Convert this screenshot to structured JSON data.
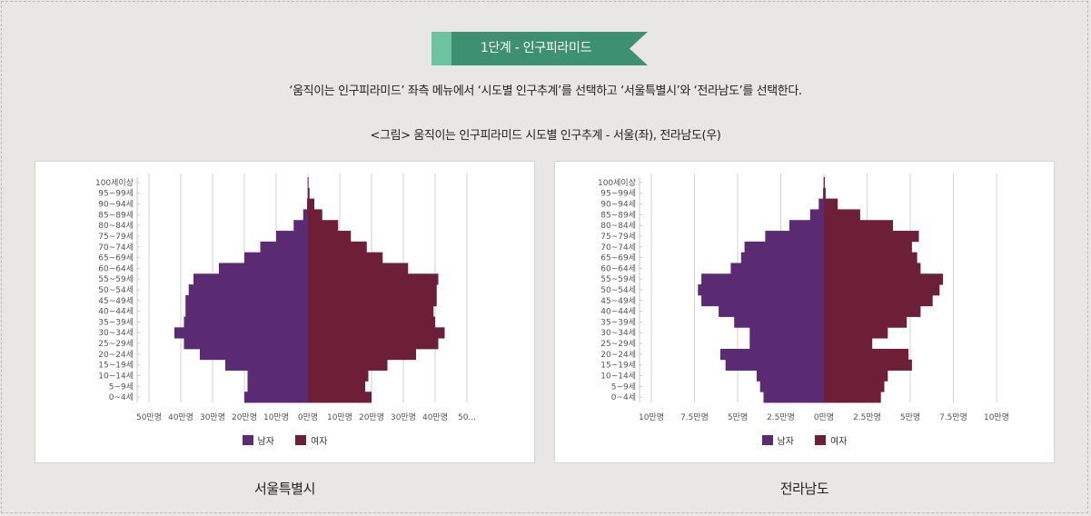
{
  "header": {
    "step_title": "1단계 - 인구피라미드",
    "instruction": "‘움직이는 인구피라미드’ 좌측 메뉴에서 ‘시도별 인구추계’를 선택하고 ‘서울특별시’와 ‘전라남도’를 선택한다.",
    "figure_caption": "<그림> 움직이는 인구피라미드 시도별 인구추계 - 서울(좌), 전라남도(우)"
  },
  "colors": {
    "male": "#5a2a73",
    "female": "#6e1f38",
    "banner_dark": "#3e9170",
    "banner_light": "#6cc3a0",
    "background": "#e8e7e6",
    "grid": "#d2d2da"
  },
  "chart_data": [
    {
      "type": "bar",
      "orientation": "horizontal-population-pyramid",
      "region_label": "서울특별시",
      "categories": [
        "0~4세",
        "5~9세",
        "10~14세",
        "15~19세",
        "20~24세",
        "25~29세",
        "30~34세",
        "35~39세",
        "40~44세",
        "45~49세",
        "50~54세",
        "55~59세",
        "60~64세",
        "65~69세",
        "70~74세",
        "75~79세",
        "80~84세",
        "85~89세",
        "90~94세",
        "95~99세",
        "100세이상"
      ],
      "x_tick_labels": [
        "50만명",
        "40만명",
        "30만명",
        "20만명",
        "10만명",
        "0만명",
        "10만명",
        "20만명",
        "30만명",
        "40만명",
        "50..."
      ],
      "xlim": [
        -50,
        50
      ],
      "unit": "만명",
      "grid": true,
      "legend_position": "bottom",
      "series": [
        {
          "name": "남자",
          "values": [
            20,
            19,
            19,
            26,
            34,
            39,
            42,
            39,
            38.5,
            38.5,
            37.5,
            36,
            28,
            20,
            15,
            10,
            4.5,
            1.5,
            0.3,
            0.1,
            0.1
          ]
        },
        {
          "name": "여자",
          "values": [
            20,
            18,
            19,
            25,
            34,
            41,
            43,
            40,
            39.5,
            40.5,
            40.5,
            41,
            31.5,
            23.5,
            18.5,
            13.5,
            9.5,
            4.5,
            2,
            0.5,
            0.2
          ]
        }
      ]
    },
    {
      "type": "bar",
      "orientation": "horizontal-population-pyramid",
      "region_label": "전라남도",
      "categories": [
        "0~4세",
        "5~9세",
        "10~14세",
        "15~19세",
        "20~24세",
        "25~29세",
        "30~34세",
        "35~39세",
        "40~44세",
        "45~49세",
        "50~54세",
        "55~59세",
        "60~64세",
        "65~69세",
        "70~74세",
        "75~79세",
        "80~84세",
        "85~89세",
        "90~94세",
        "95~99세",
        "100세이상"
      ],
      "x_tick_labels": [
        "10만명",
        "7.5만명",
        "5만명",
        "2.5만명",
        "0만명",
        "2.5만명",
        "5만명",
        "7.5만명",
        "10만명"
      ],
      "xlim": [
        -10,
        10
      ],
      "unit": "만명",
      "grid": true,
      "legend_position": "bottom",
      "series": [
        {
          "name": "남자",
          "values": [
            3.5,
            3.7,
            3.9,
            5.7,
            6,
            4.3,
            4.3,
            5.2,
            6.1,
            7.1,
            7.3,
            7.1,
            5.4,
            4.8,
            4.6,
            3.4,
            2,
            0.8,
            0.3,
            0.05,
            0.02
          ]
        },
        {
          "name": "여자",
          "values": [
            3.3,
            3.5,
            3.7,
            5.1,
            4.9,
            2.8,
            3.7,
            4.8,
            5.6,
            6.3,
            6.7,
            6.9,
            5.6,
            5.4,
            5.1,
            5.5,
            4,
            2.1,
            0.8,
            0.1,
            0.05
          ]
        }
      ]
    }
  ]
}
